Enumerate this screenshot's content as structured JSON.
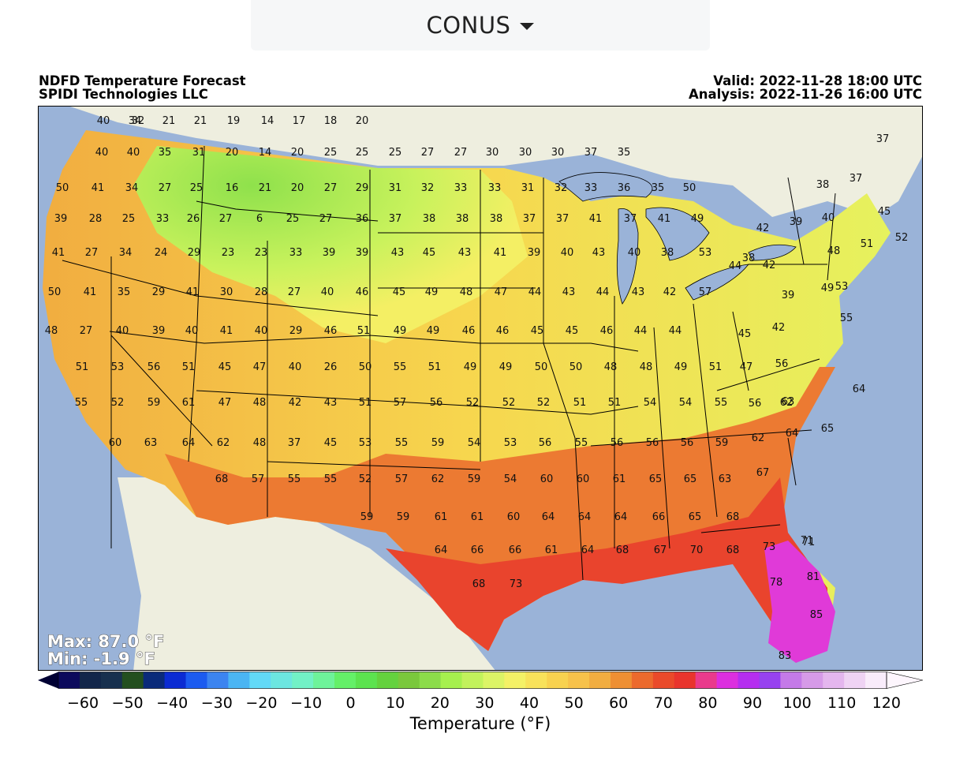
{
  "region_selector": {
    "label": "CONUS"
  },
  "header": {
    "title_line1": "NDFD Temperature Forecast",
    "title_line2": "SPIDI Technologies LLC",
    "valid": "Valid: 2022-11-28 18:00 UTC",
    "analysis": "Analysis: 2022-11-26 16:00 UTC"
  },
  "stats": {
    "max": "Max: 87.0 °F",
    "min": "Min: -1.9 °F"
  },
  "colorbar": {
    "label": "Temperature (°F)",
    "ticks": [
      "−60",
      "−50",
      "−40",
      "−30",
      "−20",
      "−10",
      "0",
      "10",
      "20",
      "30",
      "40",
      "50",
      "60",
      "70",
      "80",
      "90",
      "100",
      "110",
      "120"
    ],
    "colors": [
      "#0c0a5c",
      "#12264a",
      "#17304e",
      "#234f1f",
      "#0a2a7a",
      "#0b2bd3",
      "#1c5bf0",
      "#3c84f0",
      "#4bb5f3",
      "#62d9f7",
      "#6ce6e0",
      "#72f1c6",
      "#6ef39a",
      "#64f068",
      "#5ce34f",
      "#64d23e",
      "#7ac83c",
      "#8cdc4a",
      "#a6f04e",
      "#c2f25c",
      "#dcf466",
      "#f4f166",
      "#f8e25a",
      "#f8d24f",
      "#f7c24a",
      "#f1ad40",
      "#ee8f33",
      "#ec6a2d",
      "#ea4a2a",
      "#e9342d",
      "#ea3a8c",
      "#dc2fdf",
      "#b52ef0",
      "#9742f0",
      "#c47ae8",
      "#d69ae8",
      "#e4b6ee",
      "#efd3f4",
      "#f9ecfb"
    ]
  },
  "map": {
    "colors": {
      "ocean": "#9ab3d8",
      "land_outside": "#eeeedf",
      "lakes": "#9ab3d8"
    },
    "stations": [
      {
        "v": "32"
      },
      {
        "v": "40"
      },
      {
        "v": "34"
      },
      {
        "v": "21"
      },
      {
        "v": "21"
      },
      {
        "v": "19"
      },
      {
        "v": "14"
      },
      {
        "v": "17"
      },
      {
        "v": "18"
      },
      {
        "v": "20"
      },
      {
        "v": "40"
      },
      {
        "v": "40"
      },
      {
        "v": "35"
      },
      {
        "v": "31"
      },
      {
        "v": "20"
      },
      {
        "v": "14"
      },
      {
        "v": "20"
      },
      {
        "v": "25"
      },
      {
        "v": "25"
      },
      {
        "v": "25"
      },
      {
        "v": "27"
      },
      {
        "v": "27"
      },
      {
        "v": "30"
      },
      {
        "v": "30"
      },
      {
        "v": "30"
      },
      {
        "v": "37"
      },
      {
        "v": "35"
      },
      {
        "v": "50"
      },
      {
        "v": "41"
      },
      {
        "v": "34"
      },
      {
        "v": "27"
      },
      {
        "v": "25"
      },
      {
        "v": "16"
      },
      {
        "v": "21"
      },
      {
        "v": "20"
      },
      {
        "v": "27"
      },
      {
        "v": "29"
      },
      {
        "v": "31"
      },
      {
        "v": "32"
      },
      {
        "v": "33"
      },
      {
        "v": "33"
      },
      {
        "v": "31"
      },
      {
        "v": "32"
      },
      {
        "v": "33"
      },
      {
        "v": "36"
      },
      {
        "v": "35"
      },
      {
        "v": "50"
      },
      {
        "v": "39"
      },
      {
        "v": "28"
      },
      {
        "v": "25"
      },
      {
        "v": "33"
      },
      {
        "v": "26"
      },
      {
        "v": "27"
      },
      {
        "v": "6"
      },
      {
        "v": "25"
      },
      {
        "v": "27"
      },
      {
        "v": "36"
      },
      {
        "v": "37"
      },
      {
        "v": "38"
      },
      {
        "v": "38"
      },
      {
        "v": "38"
      },
      {
        "v": "37"
      },
      {
        "v": "37"
      },
      {
        "v": "41"
      },
      {
        "v": "37"
      },
      {
        "v": "41"
      },
      {
        "v": "49"
      },
      {
        "v": "41"
      },
      {
        "v": "27"
      },
      {
        "v": "34"
      },
      {
        "v": "24"
      },
      {
        "v": "29"
      },
      {
        "v": "23"
      },
      {
        "v": "23"
      },
      {
        "v": "33"
      },
      {
        "v": "39"
      },
      {
        "v": "39"
      },
      {
        "v": "43"
      },
      {
        "v": "45"
      },
      {
        "v": "43"
      },
      {
        "v": "41"
      },
      {
        "v": "39"
      },
      {
        "v": "40"
      },
      {
        "v": "43"
      },
      {
        "v": "40"
      },
      {
        "v": "38"
      },
      {
        "v": "53"
      },
      {
        "v": "50"
      },
      {
        "v": "41"
      },
      {
        "v": "35"
      },
      {
        "v": "29"
      },
      {
        "v": "41"
      },
      {
        "v": "30"
      },
      {
        "v": "28"
      },
      {
        "v": "27"
      },
      {
        "v": "40"
      },
      {
        "v": "46"
      },
      {
        "v": "45"
      },
      {
        "v": "49"
      },
      {
        "v": "48"
      },
      {
        "v": "47"
      },
      {
        "v": "44"
      },
      {
        "v": "43"
      },
      {
        "v": "44"
      },
      {
        "v": "43"
      },
      {
        "v": "42"
      },
      {
        "v": "57"
      },
      {
        "v": "48"
      },
      {
        "v": "27"
      },
      {
        "v": "40"
      },
      {
        "v": "39"
      },
      {
        "v": "40"
      },
      {
        "v": "41"
      },
      {
        "v": "40"
      },
      {
        "v": "29"
      },
      {
        "v": "46"
      },
      {
        "v": "51"
      },
      {
        "v": "49"
      },
      {
        "v": "49"
      },
      {
        "v": "46"
      },
      {
        "v": "46"
      },
      {
        "v": "45"
      },
      {
        "v": "45"
      },
      {
        "v": "46"
      },
      {
        "v": "44"
      },
      {
        "v": "44"
      },
      {
        "v": "51"
      },
      {
        "v": "53"
      },
      {
        "v": "56"
      },
      {
        "v": "51"
      },
      {
        "v": "45"
      },
      {
        "v": "47"
      },
      {
        "v": "40"
      },
      {
        "v": "26"
      },
      {
        "v": "50"
      },
      {
        "v": "55"
      },
      {
        "v": "51"
      },
      {
        "v": "49"
      },
      {
        "v": "49"
      },
      {
        "v": "50"
      },
      {
        "v": "50"
      },
      {
        "v": "48"
      },
      {
        "v": "48"
      },
      {
        "v": "49"
      },
      {
        "v": "51"
      },
      {
        "v": "55"
      },
      {
        "v": "52"
      },
      {
        "v": "59"
      },
      {
        "v": "61"
      },
      {
        "v": "47"
      },
      {
        "v": "48"
      },
      {
        "v": "42"
      },
      {
        "v": "43"
      },
      {
        "v": "51"
      },
      {
        "v": "57"
      },
      {
        "v": "56"
      },
      {
        "v": "52"
      },
      {
        "v": "52"
      },
      {
        "v": "52"
      },
      {
        "v": "51"
      },
      {
        "v": "51"
      },
      {
        "v": "54"
      },
      {
        "v": "54"
      },
      {
        "v": "55"
      },
      {
        "v": "60"
      },
      {
        "v": "63"
      },
      {
        "v": "64"
      },
      {
        "v": "62"
      },
      {
        "v": "48"
      },
      {
        "v": "37"
      },
      {
        "v": "45"
      },
      {
        "v": "53"
      },
      {
        "v": "55"
      },
      {
        "v": "59"
      },
      {
        "v": "54"
      },
      {
        "v": "53"
      },
      {
        "v": "56"
      },
      {
        "v": "55"
      },
      {
        "v": "56"
      },
      {
        "v": "56"
      },
      {
        "v": "56"
      },
      {
        "v": "59"
      },
      {
        "v": "68"
      },
      {
        "v": "57"
      },
      {
        "v": "55"
      },
      {
        "v": "55"
      },
      {
        "v": "52"
      },
      {
        "v": "57"
      },
      {
        "v": "62"
      },
      {
        "v": "59"
      },
      {
        "v": "54"
      },
      {
        "v": "60"
      },
      {
        "v": "60"
      },
      {
        "v": "61"
      },
      {
        "v": "65"
      },
      {
        "v": "65"
      },
      {
        "v": "63"
      },
      {
        "v": "59"
      },
      {
        "v": "59"
      },
      {
        "v": "61"
      },
      {
        "v": "61"
      },
      {
        "v": "60"
      },
      {
        "v": "64"
      },
      {
        "v": "64"
      },
      {
        "v": "64"
      },
      {
        "v": "66"
      },
      {
        "v": "65"
      },
      {
        "v": "68"
      },
      {
        "v": "64"
      },
      {
        "v": "66"
      },
      {
        "v": "66"
      },
      {
        "v": "61"
      },
      {
        "v": "64"
      },
      {
        "v": "68"
      },
      {
        "v": "67"
      },
      {
        "v": "70"
      },
      {
        "v": "68"
      },
      {
        "v": "68"
      },
      {
        "v": "73"
      },
      {
        "v": "37"
      },
      {
        "v": "38"
      },
      {
        "v": "37"
      },
      {
        "v": "45"
      },
      {
        "v": "40"
      },
      {
        "v": "39"
      },
      {
        "v": "42"
      },
      {
        "v": "48"
      },
      {
        "v": "51"
      },
      {
        "v": "52"
      },
      {
        "v": "42"
      },
      {
        "v": "38"
      },
      {
        "v": "44"
      },
      {
        "v": "53"
      },
      {
        "v": "39"
      },
      {
        "v": "49"
      },
      {
        "v": "42"
      },
      {
        "v": "55"
      },
      {
        "v": "45"
      },
      {
        "v": "47"
      },
      {
        "v": "56"
      },
      {
        "v": "62"
      },
      {
        "v": "63"
      },
      {
        "v": "64"
      },
      {
        "v": "56"
      },
      {
        "v": "62"
      },
      {
        "v": "64"
      },
      {
        "v": "65"
      },
      {
        "v": "67"
      },
      {
        "v": "71"
      },
      {
        "v": "73"
      },
      {
        "v": "71"
      },
      {
        "v": "78"
      },
      {
        "v": "81"
      },
      {
        "v": "85"
      },
      {
        "v": "83"
      }
    ]
  }
}
